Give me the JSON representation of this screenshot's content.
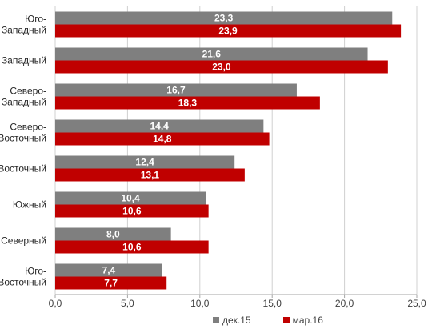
{
  "chart_data": {
    "type": "bar",
    "orientation": "horizontal",
    "categories": [
      [
        "Юго-",
        "Западный"
      ],
      [
        "Западный"
      ],
      [
        "Северо-",
        "Западный"
      ],
      [
        "Северо-",
        "Восточный"
      ],
      [
        "Восточный"
      ],
      [
        "Южный"
      ],
      [
        "Северный"
      ],
      [
        "Юго-",
        "Восточный"
      ]
    ],
    "series": [
      {
        "name": "дек.15",
        "color": "#7f7f7f",
        "values": [
          23.3,
          21.6,
          16.7,
          14.4,
          12.4,
          10.4,
          8.0,
          7.4
        ],
        "labels": [
          "23,3",
          "21,6",
          "16,7",
          "14,4",
          "12,4",
          "10,4",
          "8,0",
          "7,4"
        ]
      },
      {
        "name": "мар.16",
        "color": "#c00000",
        "values": [
          23.9,
          23.0,
          18.3,
          14.8,
          13.1,
          10.6,
          10.6,
          7.7
        ],
        "labels": [
          "23,9",
          "23,0",
          "18,3",
          "14,8",
          "13,1",
          "10,6",
          "10,6",
          "7,7"
        ]
      }
    ],
    "xlim": [
      0,
      25
    ],
    "xticks": [
      0,
      5,
      10,
      15,
      20,
      25
    ],
    "xtick_labels": [
      "0,0",
      "5,0",
      "10,0",
      "15,0",
      "20,0",
      "25,0"
    ],
    "grid": true,
    "legend": "bottom-right"
  }
}
